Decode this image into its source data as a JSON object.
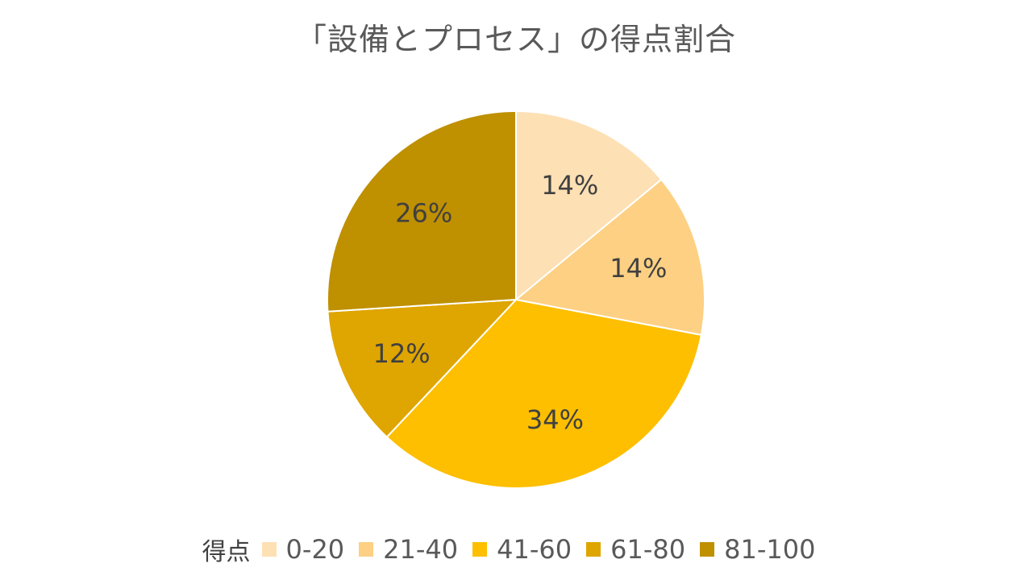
{
  "chart_data": {
    "type": "pie",
    "title": "「設備とプロセス」の得点割合",
    "legend_title": "得点",
    "legend_position": "bottom",
    "categories": [
      "0-20",
      "21-40",
      "41-60",
      "61-80",
      "81-100"
    ],
    "values": [
      14,
      14,
      34,
      12,
      26
    ],
    "labels": [
      "14%",
      "14%",
      "34%",
      "12%",
      "26%"
    ],
    "colors": [
      "#FDE0B4",
      "#FDD083",
      "#FDBF00",
      "#DFA500",
      "#BF9000"
    ]
  }
}
